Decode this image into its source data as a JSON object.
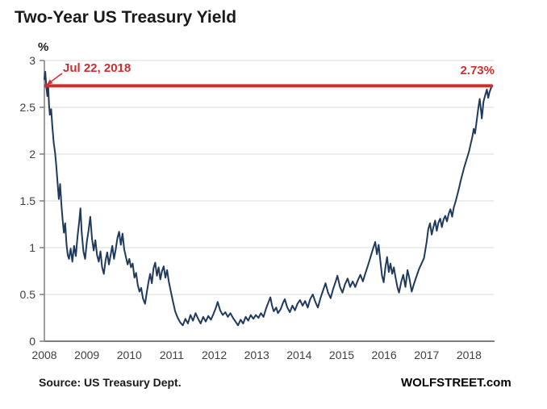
{
  "title": "Two-Year US Treasury Yield",
  "y_axis_unit": "%",
  "annotations": {
    "date_label": "Jul 22, 2018",
    "value_label": "2.73%"
  },
  "footer": {
    "source": "Source: US Treasury Dept.",
    "brand": "WOLFSTREET.com"
  },
  "colors": {
    "line": "#1f3a5c",
    "highlight": "#d22d2d",
    "grid": "#d9d9d9",
    "axis": "#7f7f7f",
    "tick_text": "#404040",
    "title_text": "#1a1a1a"
  },
  "chart_data": {
    "type": "line",
    "title": "Two-Year US Treasury Yield",
    "xlabel": "",
    "ylabel": "%",
    "legend": false,
    "grid": true,
    "x_ticks": [
      2008,
      2009,
      2010,
      2011,
      2012,
      2013,
      2014,
      2015,
      2016,
      2017,
      2018
    ],
    "y_ticks": [
      0,
      0.5,
      1,
      1.5,
      2,
      2.5,
      3
    ],
    "x_range": [
      2008,
      2018.6
    ],
    "ylim": [
      0,
      3
    ],
    "highlight_line": {
      "value": 2.73,
      "x_start": 2008.0,
      "x_end": 2018.55,
      "label": "2.73%",
      "date": "Jul 22, 2018"
    },
    "series": [
      {
        "name": "Two-Year US Treasury Yield",
        "points": [
          [
            2008.0,
            2.8
          ],
          [
            2008.02,
            2.88
          ],
          [
            2008.05,
            2.7
          ],
          [
            2008.07,
            2.62
          ],
          [
            2008.09,
            2.73
          ],
          [
            2008.11,
            2.52
          ],
          [
            2008.13,
            2.42
          ],
          [
            2008.16,
            2.48
          ],
          [
            2008.19,
            2.28
          ],
          [
            2008.22,
            2.12
          ],
          [
            2008.25,
            2.02
          ],
          [
            2008.28,
            1.88
          ],
          [
            2008.31,
            1.7
          ],
          [
            2008.34,
            1.52
          ],
          [
            2008.37,
            1.68
          ],
          [
            2008.4,
            1.46
          ],
          [
            2008.43,
            1.3
          ],
          [
            2008.46,
            1.16
          ],
          [
            2008.49,
            1.26
          ],
          [
            2008.52,
            1.04
          ],
          [
            2008.55,
            0.92
          ],
          [
            2008.58,
            0.88
          ],
          [
            2008.62,
            0.99
          ],
          [
            2008.66,
            0.85
          ],
          [
            2008.7,
            1.02
          ],
          [
            2008.74,
            0.91
          ],
          [
            2008.78,
            1.12
          ],
          [
            2008.82,
            1.28
          ],
          [
            2008.85,
            1.42
          ],
          [
            2008.88,
            1.16
          ],
          [
            2008.92,
            0.96
          ],
          [
            2008.96,
            0.88
          ],
          [
            2009.0,
            1.06
          ],
          [
            2009.04,
            1.18
          ],
          [
            2009.08,
            1.33
          ],
          [
            2009.12,
            1.1
          ],
          [
            2009.16,
            0.97
          ],
          [
            2009.2,
            1.08
          ],
          [
            2009.24,
            0.92
          ],
          [
            2009.28,
            0.85
          ],
          [
            2009.32,
            0.96
          ],
          [
            2009.36,
            0.79
          ],
          [
            2009.4,
            0.72
          ],
          [
            2009.44,
            0.86
          ],
          [
            2009.48,
            0.95
          ],
          [
            2009.52,
            0.82
          ],
          [
            2009.56,
            0.92
          ],
          [
            2009.6,
            1.02
          ],
          [
            2009.64,
            0.88
          ],
          [
            2009.68,
            0.98
          ],
          [
            2009.72,
            1.1
          ],
          [
            2009.76,
            1.17
          ],
          [
            2009.8,
            1.03
          ],
          [
            2009.84,
            1.15
          ],
          [
            2009.88,
            0.98
          ],
          [
            2009.92,
            0.9
          ],
          [
            2009.96,
            0.82
          ],
          [
            2010.0,
            0.88
          ],
          [
            2010.04,
            0.79
          ],
          [
            2010.08,
            0.83
          ],
          [
            2010.12,
            0.68
          ],
          [
            2010.16,
            0.73
          ],
          [
            2010.2,
            0.6
          ],
          [
            2010.24,
            0.53
          ],
          [
            2010.28,
            0.57
          ],
          [
            2010.32,
            0.46
          ],
          [
            2010.37,
            0.4
          ],
          [
            2010.41,
            0.52
          ],
          [
            2010.45,
            0.63
          ],
          [
            2010.49,
            0.72
          ],
          [
            2010.53,
            0.62
          ],
          [
            2010.57,
            0.78
          ],
          [
            2010.61,
            0.84
          ],
          [
            2010.65,
            0.7
          ],
          [
            2010.69,
            0.79
          ],
          [
            2010.73,
            0.66
          ],
          [
            2010.77,
            0.75
          ],
          [
            2010.81,
            0.8
          ],
          [
            2010.85,
            0.68
          ],
          [
            2010.89,
            0.76
          ],
          [
            2010.93,
            0.64
          ],
          [
            2010.97,
            0.55
          ],
          [
            2011.02,
            0.44
          ],
          [
            2011.08,
            0.32
          ],
          [
            2011.14,
            0.25
          ],
          [
            2011.2,
            0.2
          ],
          [
            2011.26,
            0.17
          ],
          [
            2011.32,
            0.24
          ],
          [
            2011.38,
            0.19
          ],
          [
            2011.44,
            0.28
          ],
          [
            2011.5,
            0.22
          ],
          [
            2011.56,
            0.3
          ],
          [
            2011.62,
            0.24
          ],
          [
            2011.68,
            0.19
          ],
          [
            2011.74,
            0.26
          ],
          [
            2011.8,
            0.21
          ],
          [
            2011.86,
            0.27
          ],
          [
            2011.92,
            0.23
          ],
          [
            2011.98,
            0.29
          ],
          [
            2012.04,
            0.36
          ],
          [
            2012.08,
            0.42
          ],
          [
            2012.14,
            0.33
          ],
          [
            2012.2,
            0.28
          ],
          [
            2012.26,
            0.31
          ],
          [
            2012.32,
            0.26
          ],
          [
            2012.38,
            0.3
          ],
          [
            2012.44,
            0.25
          ],
          [
            2012.5,
            0.21
          ],
          [
            2012.56,
            0.17
          ],
          [
            2012.62,
            0.23
          ],
          [
            2012.68,
            0.19
          ],
          [
            2012.74,
            0.26
          ],
          [
            2012.8,
            0.22
          ],
          [
            2012.86,
            0.28
          ],
          [
            2012.92,
            0.24
          ],
          [
            2012.98,
            0.28
          ],
          [
            2013.04,
            0.25
          ],
          [
            2013.1,
            0.3
          ],
          [
            2013.16,
            0.26
          ],
          [
            2013.22,
            0.35
          ],
          [
            2013.28,
            0.42
          ],
          [
            2013.32,
            0.47
          ],
          [
            2013.36,
            0.38
          ],
          [
            2013.4,
            0.32
          ],
          [
            2013.46,
            0.36
          ],
          [
            2013.5,
            0.3
          ],
          [
            2013.56,
            0.34
          ],
          [
            2013.62,
            0.41
          ],
          [
            2013.66,
            0.45
          ],
          [
            2013.72,
            0.36
          ],
          [
            2013.78,
            0.31
          ],
          [
            2013.84,
            0.38
          ],
          [
            2013.9,
            0.33
          ],
          [
            2013.96,
            0.4
          ],
          [
            2014.02,
            0.44
          ],
          [
            2014.08,
            0.38
          ],
          [
            2014.14,
            0.43
          ],
          [
            2014.2,
            0.36
          ],
          [
            2014.26,
            0.45
          ],
          [
            2014.32,
            0.5
          ],
          [
            2014.38,
            0.42
          ],
          [
            2014.44,
            0.36
          ],
          [
            2014.5,
            0.46
          ],
          [
            2014.56,
            0.54
          ],
          [
            2014.62,
            0.62
          ],
          [
            2014.68,
            0.52
          ],
          [
            2014.74,
            0.46
          ],
          [
            2014.8,
            0.56
          ],
          [
            2014.86,
            0.64
          ],
          [
            2014.9,
            0.7
          ],
          [
            2014.96,
            0.58
          ],
          [
            2015.02,
            0.52
          ],
          [
            2015.08,
            0.61
          ],
          [
            2015.14,
            0.67
          ],
          [
            2015.2,
            0.58
          ],
          [
            2015.26,
            0.64
          ],
          [
            2015.32,
            0.58
          ],
          [
            2015.38,
            0.65
          ],
          [
            2015.44,
            0.71
          ],
          [
            2015.5,
            0.64
          ],
          [
            2015.56,
            0.73
          ],
          [
            2015.62,
            0.81
          ],
          [
            2015.68,
            0.9
          ],
          [
            2015.74,
            0.99
          ],
          [
            2015.79,
            1.06
          ],
          [
            2015.83,
            0.93
          ],
          [
            2015.87,
            1.03
          ],
          [
            2015.91,
            0.86
          ],
          [
            2015.95,
            0.7
          ],
          [
            2015.99,
            0.63
          ],
          [
            2016.03,
            0.79
          ],
          [
            2016.07,
            0.9
          ],
          [
            2016.11,
            0.74
          ],
          [
            2016.15,
            0.83
          ],
          [
            2016.19,
            0.72
          ],
          [
            2016.23,
            0.79
          ],
          [
            2016.27,
            0.68
          ],
          [
            2016.31,
            0.58
          ],
          [
            2016.35,
            0.52
          ],
          [
            2016.4,
            0.63
          ],
          [
            2016.45,
            0.71
          ],
          [
            2016.5,
            0.58
          ],
          [
            2016.55,
            0.76
          ],
          [
            2016.6,
            0.66
          ],
          [
            2016.65,
            0.53
          ],
          [
            2016.7,
            0.61
          ],
          [
            2016.76,
            0.69
          ],
          [
            2016.82,
            0.77
          ],
          [
            2016.88,
            0.83
          ],
          [
            2016.94,
            0.89
          ],
          [
            2017.0,
            1.06
          ],
          [
            2017.04,
            1.2
          ],
          [
            2017.08,
            1.26
          ],
          [
            2017.12,
            1.14
          ],
          [
            2017.16,
            1.22
          ],
          [
            2017.2,
            1.29
          ],
          [
            2017.24,
            1.18
          ],
          [
            2017.28,
            1.27
          ],
          [
            2017.32,
            1.31
          ],
          [
            2017.36,
            1.22
          ],
          [
            2017.4,
            1.3
          ],
          [
            2017.44,
            1.34
          ],
          [
            2017.48,
            1.28
          ],
          [
            2017.52,
            1.36
          ],
          [
            2017.56,
            1.41
          ],
          [
            2017.6,
            1.33
          ],
          [
            2017.64,
            1.43
          ],
          [
            2017.68,
            1.49
          ],
          [
            2017.72,
            1.56
          ],
          [
            2017.76,
            1.63
          ],
          [
            2017.8,
            1.71
          ],
          [
            2017.84,
            1.78
          ],
          [
            2017.88,
            1.85
          ],
          [
            2017.92,
            1.91
          ],
          [
            2017.96,
            1.97
          ],
          [
            2018.0,
            2.03
          ],
          [
            2018.04,
            2.11
          ],
          [
            2018.08,
            2.19
          ],
          [
            2018.11,
            2.27
          ],
          [
            2018.14,
            2.22
          ],
          [
            2018.18,
            2.36
          ],
          [
            2018.22,
            2.5
          ],
          [
            2018.25,
            2.59
          ],
          [
            2018.28,
            2.47
          ],
          [
            2018.3,
            2.38
          ],
          [
            2018.34,
            2.56
          ],
          [
            2018.38,
            2.63
          ],
          [
            2018.42,
            2.69
          ],
          [
            2018.45,
            2.6
          ],
          [
            2018.48,
            2.66
          ],
          [
            2018.52,
            2.71
          ],
          [
            2018.55,
            2.73
          ]
        ]
      }
    ]
  }
}
